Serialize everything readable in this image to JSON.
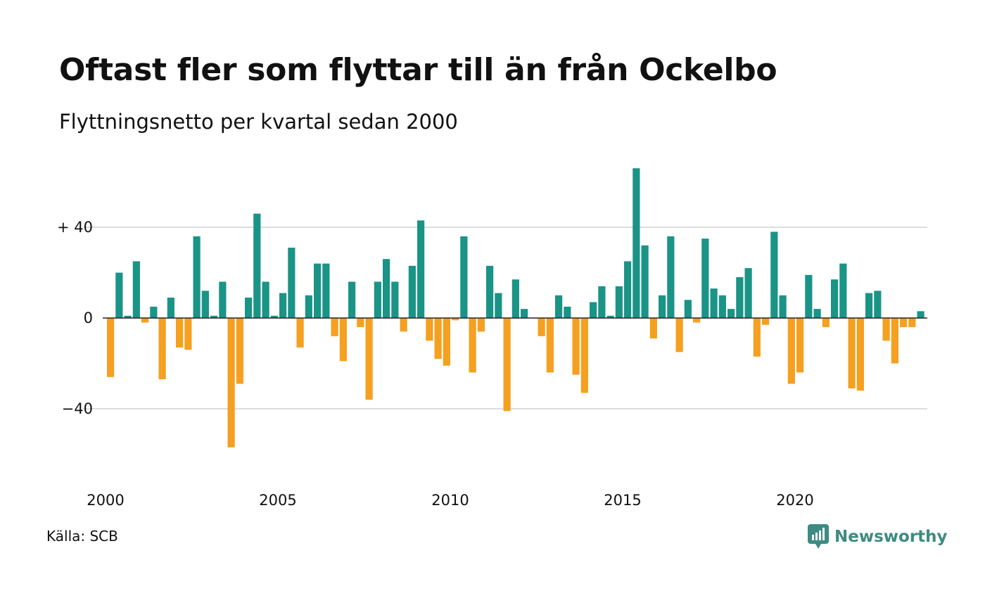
{
  "header": {
    "title": "Oftast fler som flyttar till än från Ockelbo",
    "subtitle": "Flyttningsnetto per kvartal sedan 2000"
  },
  "footer": {
    "source": "Källa: SCB",
    "brand": "Newsworthy"
  },
  "colors": {
    "positive": "#1a9486",
    "negative": "#f5a020",
    "grid": "#dddddd",
    "brand": "#3d8b82"
  },
  "icons": {
    "brand_logo": "speech-bubble-bar-chart-icon"
  },
  "chart_data": {
    "type": "bar",
    "title": "Oftast fler som flyttar till än från Ockelbo",
    "subtitle": "Flyttningsnetto per kvartal sedan 2000",
    "ylim": [
      -62,
      70
    ],
    "grid": true,
    "y_ticks": [
      {
        "value": 40,
        "label": "+ 40"
      },
      {
        "value": 0,
        "label": "0"
      },
      {
        "value": -40,
        "label": "−40"
      }
    ],
    "x_ticks": [
      "2000",
      "2005",
      "2010",
      "2015",
      "2020"
    ],
    "start_year": 2000,
    "values": [
      -26,
      20,
      1,
      25,
      -2,
      5,
      -27,
      9,
      -13,
      -14,
      36,
      12,
      1,
      16,
      -57,
      -29,
      9,
      46,
      16,
      1,
      11,
      31,
      -13,
      10,
      24,
      24,
      -8,
      -19,
      16,
      -4,
      -36,
      16,
      26,
      16,
      -6,
      23,
      43,
      -10,
      -18,
      -21,
      -1,
      36,
      -24,
      -6,
      23,
      11,
      -41,
      17,
      4,
      0,
      -8,
      -24,
      10,
      5,
      -25,
      -33,
      7,
      14,
      1,
      14,
      25,
      66,
      32,
      -9,
      10,
      36,
      -15,
      8,
      -2,
      35,
      13,
      10,
      4,
      18,
      22,
      -17,
      -3,
      38,
      10,
      -29,
      -24,
      19,
      4,
      -4,
      17,
      24,
      -31,
      -32,
      11,
      12,
      -10,
      -20,
      -4,
      -4,
      3
    ]
  }
}
